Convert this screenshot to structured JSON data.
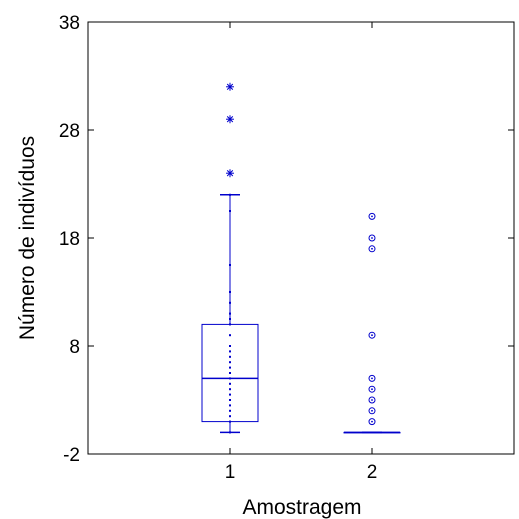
{
  "chart_data": {
    "type": "box",
    "xlabel": "Amostragem",
    "ylabel": "Número de indivíduos",
    "ylim": [
      -2,
      38
    ],
    "xlim": [
      0,
      3
    ],
    "yticks": [
      -2,
      8,
      18,
      28,
      38
    ],
    "xticks": [
      1,
      2
    ],
    "xtick_labels": [
      "1",
      "2"
    ],
    "colors": {
      "box": "#0000cc",
      "axis": "#000000"
    },
    "boxes": [
      {
        "category": "1",
        "whisker_low": 0,
        "q1": 1,
        "median": 5,
        "q3": 10,
        "whisker_high": 22,
        "outlier_marker": "asterisk",
        "outliers": [
          24,
          29,
          32
        ],
        "data_points": [
          0,
          1,
          1.5,
          2,
          2.5,
          3,
          3.5,
          4,
          4.5,
          5,
          5.5,
          6,
          6.5,
          7,
          7.5,
          8,
          9,
          10,
          10.5,
          11,
          12,
          13,
          15.5,
          20.5,
          22
        ]
      },
      {
        "category": "2",
        "whisker_low": 0,
        "q1": 0,
        "median": 0,
        "q3": 0,
        "whisker_high": 0,
        "outlier_marker": "circle-dot",
        "outliers": [
          1,
          2,
          3,
          4,
          5,
          9,
          17,
          18,
          20
        ]
      }
    ]
  }
}
